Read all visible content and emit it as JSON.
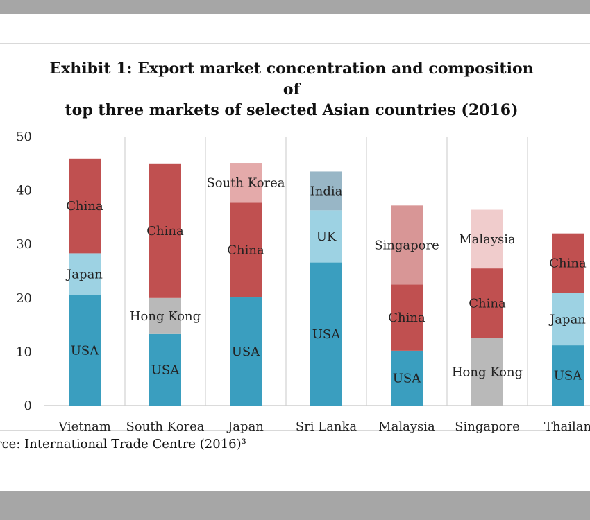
{
  "title_lines": [
    "Exhibit 1: Export market concentration and composition of",
    "top three markets of selected Asian countries (2016)"
  ],
  "source": "rce: International Trade Centre (2016)³",
  "chart_data": {
    "type": "bar",
    "stacked": true,
    "title": "Exhibit 1: Export market concentration and composition of top three markets of selected Asian countries (2016)",
    "categories": [
      "Vietnam",
      "South Korea",
      "Japan",
      "Sri Lanka",
      "Malaysia",
      "Singapore",
      "Thailand"
    ],
    "category_labels": [
      "Vietnam",
      "South Korea",
      "Japan",
      "Sri Lanka",
      "Malaysia",
      "Singapore",
      "Thailan"
    ],
    "ylim": [
      0,
      50
    ],
    "yticks": [
      0,
      10,
      20,
      30,
      40,
      50
    ],
    "grid": false,
    "stacks": [
      [
        {
          "market": "USA",
          "value": 20.5,
          "color": "#3a9ebf"
        },
        {
          "market": "Japan",
          "value": 7.8,
          "color": "#9dd2e3"
        },
        {
          "market": "China",
          "value": 17.6,
          "color": "#c05050"
        }
      ],
      [
        {
          "market": "USA",
          "value": 13.3,
          "color": "#3a9ebf"
        },
        {
          "market": "Hong Kong",
          "value": 6.7,
          "color": "#b9b9b9"
        },
        {
          "market": "China",
          "value": 25.0,
          "color": "#c05050"
        }
      ],
      [
        {
          "market": "USA",
          "value": 20.1,
          "color": "#3a9ebf"
        },
        {
          "market": "China",
          "value": 17.6,
          "color": "#c05050"
        },
        {
          "market": "South Korea",
          "value": 7.4,
          "color": "#e4aaaa"
        }
      ],
      [
        {
          "market": "USA",
          "value": 26.6,
          "color": "#3a9ebf"
        },
        {
          "market": "UK",
          "value": 9.7,
          "color": "#9dd2e3"
        },
        {
          "market": "India",
          "value": 7.2,
          "color": "#98b6c6"
        }
      ],
      [
        {
          "market": "USA",
          "value": 10.2,
          "color": "#3a9ebf"
        },
        {
          "market": "China",
          "value": 12.3,
          "color": "#c05050"
        },
        {
          "market": "Singapore",
          "value": 14.7,
          "color": "#d89696"
        }
      ],
      [
        {
          "market": "Hong Kong",
          "value": 12.5,
          "color": "#b9b9b9"
        },
        {
          "market": "China",
          "value": 13.0,
          "color": "#c05050"
        },
        {
          "market": "Malaysia",
          "value": 10.9,
          "color": "#f0cccc"
        }
      ],
      [
        {
          "market": "USA",
          "value": 11.2,
          "color": "#3a9ebf"
        },
        {
          "market": "Japan",
          "value": 9.7,
          "color": "#9dd2e3"
        },
        {
          "market": "China",
          "value": 11.1,
          "color": "#c05050"
        }
      ]
    ]
  }
}
